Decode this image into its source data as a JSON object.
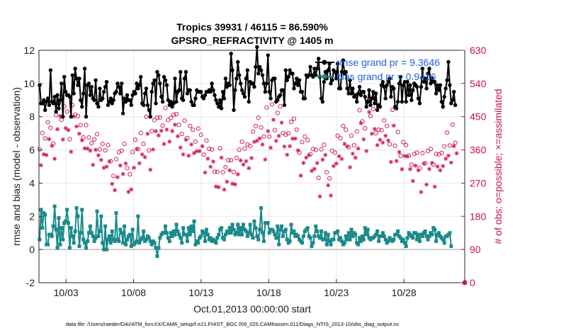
{
  "chart_data": {
    "type": "line",
    "title": "Tropics 39931 / 46115 = 86.590%",
    "subtitle": "GPSRO_REFRACTIVITY @ 1405 m",
    "xlabel": "Oct.01,2013 00:00:00 start",
    "ylabel": "rmse and bias (model - observation)",
    "y2label": "# of obs: o=possible; ×=assimilated",
    "footer": "data file: /Users/raeder/DAI/ATM_forcXX/CAM6_setup/f.e21.FHIST_BGC.f09_025.CAM6assim.011/Diags_NTrS_2013-10/obs_diag_output.nc",
    "xlim": [
      1.0,
      32.5
    ],
    "ylim": [
      -2,
      12
    ],
    "y2lim": [
      0,
      630
    ],
    "xticks": [
      3,
      8,
      13,
      18,
      23,
      28
    ],
    "xtick_labels": [
      "10/03",
      "10/08",
      "10/13",
      "10/18",
      "10/23",
      "10/28"
    ],
    "yticks": [
      -2,
      0,
      2,
      4,
      6,
      8,
      10,
      12
    ],
    "y2ticks": [
      0,
      90,
      180,
      270,
      360,
      450,
      540,
      630
    ],
    "grid": true,
    "legend_position": "top-right",
    "series": [
      {
        "name": "rmse grand pr = 9.3646",
        "axis": "left",
        "color": "#000000",
        "marker": "filled-circle",
        "values": [
          9.9,
          8.8,
          8.8,
          9.0,
          8.4,
          8.9,
          9.1,
          8.7,
          10.8,
          8.9,
          8.8,
          9.2,
          8.3,
          9.3,
          8.5,
          9.0,
          10.0,
          8.0,
          10.4,
          9.5,
          9.3,
          9.3,
          9.2,
          8.0,
          10.5,
          9.4,
          10.9,
          10.3,
          9.9,
          10.3,
          9.0,
          8.6,
          9.4,
          10.9,
          8.0,
          9.9,
          10.0,
          9.3,
          9.8,
          9.1,
          9.0,
          10.2,
          8.8,
          8.6,
          9.7,
          9.0,
          9.1,
          9.5,
          9.8,
          10.1,
          8.7,
          8.9,
          9.1,
          8.8,
          9.0,
          9.4,
          9.5,
          10.0,
          9.8,
          9.4,
          10.0,
          8.2,
          9.1,
          8.9,
          9.3,
          9.0,
          9.0,
          8.7,
          9.3,
          9.5,
          9.4,
          10.0,
          9.7,
          9.9,
          10.4,
          8.8,
          8.7,
          9.4,
          9.7,
          8.7,
          8.4,
          8.0,
          9.5,
          10.0,
          10.2,
          8.8,
          10.7,
          10.5,
          10.0,
          9.2,
          8.9,
          10.4,
          10.2,
          9.9,
          9.0,
          8.7,
          8.9,
          8.6,
          8.8,
          10.3,
          8.9,
          9.5,
          9.6,
          10.7,
          9.1,
          9.0,
          10.3,
          10.7,
          9.4,
          9.6,
          9.6,
          8.9,
          8.7,
          8.7,
          9.1,
          9.6,
          9.5,
          9.5,
          9.5,
          9.2,
          9.1,
          9.3,
          9.5,
          9.5,
          9.6,
          9.5,
          10.0,
          9.6,
          9.3,
          9.0,
          8.8,
          8.6,
          9.0,
          8.5,
          9.5,
          9.1,
          10.3,
          9.8,
          10.0,
          9.9,
          11.8,
          10.8,
          8.4,
          9.6,
          10.3,
          11.3,
          10.5,
          10.0,
          9.6,
          9.4,
          9.2,
          10.3,
          10.8,
          8.9,
          10.1,
          10.0,
          10.0,
          9.8,
          11.0,
          12.2,
          10.6,
          11.0,
          10.8,
          10.5,
          10.0,
          9.5,
          10.0,
          11.7,
          9.5,
          9.1,
          10.2,
          10.3,
          10.3,
          8.9,
          9.0,
          9.2,
          9.3,
          9.6,
          9.6,
          8.7,
          10.8,
          10.2,
          10.4,
          10.8,
          10.6,
          10.6,
          9.7,
          10.0,
          10.3,
          9.9,
          10.2,
          9.5,
          9.5,
          9.1,
          9.1,
          10.5,
          10.4,
          10.5,
          11.0,
          10.5,
          10.4,
          10.9,
          10.5,
          10.9,
          11.5,
          10.4,
          9.1,
          8.9,
          10.1,
          10.7,
          10.3,
          10.8,
          11.2,
          10.0,
          10.2,
          10.8,
          10.7,
          10.3,
          11.2,
          9.7,
          9.7,
          10.7,
          11.4,
          10.6,
          10.7,
          9.7,
          9.4,
          10.2,
          9.4,
          9.7,
          9.2,
          9.3,
          8.9,
          9.4,
          9.8,
          9.3,
          9.5,
          9.5,
          9.2,
          8.6,
          8.9,
          9.6,
          8.7,
          9.1,
          9.5,
          8.8,
          9.4,
          8.4,
          8.7,
          8.6,
          9.9,
          10.1,
          9.8,
          9.1,
          9.9,
          10.1,
          10.3,
          9.2,
          9.8,
          9.7,
          8.6,
          8.5,
          8.9,
          10.0,
          10.4,
          8.9,
          9.9,
          10.1,
          8.9,
          10.1,
          9.3,
          9.9,
          9.0,
          9.6,
          10.0,
          9.9,
          9.8,
          9.1,
          8.8,
          9.8,
          10.9,
          10.1,
          10.3,
          9.7,
          10.6,
          10.9,
          10.0,
          10.3,
          10.1,
          10.1,
          9.4,
          9.9,
          9.6,
          9.9,
          8.9,
          8.6,
          9.2,
          9.7,
          10.2,
          11.3,
          9.9,
          8.8,
          9.0,
          9.5,
          8.7
        ]
      },
      {
        "name": "bias grand pr = 0.9416",
        "axis": "left",
        "color": "#1a8a8a",
        "marker": "filled-square",
        "values": [
          0.6,
          2.4,
          1.3,
          2.2,
          2.1,
          0.3,
          0.3,
          0.9,
          0.9,
          0.8,
          1.4,
          2.6,
          1.2,
          0.1,
          1.9,
          0.3,
          1.3,
          0.6,
          1.6,
          1.7,
          2.4,
          1.6,
          0.1,
          1.3,
          0.8,
          0.4,
          1.1,
          2.5,
          2.0,
          0.2,
          1.0,
          2.4,
          0.6,
          0.4,
          0.1,
          0.5,
          1.0,
          1.4,
          1.0,
          0.8,
          0.5,
          0.7,
          2.3,
          0.8,
          1.1,
          2.0,
          0.4,
          0.0,
          1.4,
          0.0,
          0.6,
          0.8,
          0.4,
          1.1,
          0.6,
          0.5,
          2.2,
          0.6,
          0.5,
          1.2,
          1.0,
          0.4,
          1.4,
          0.3,
          0.6,
          0.8,
          0.9,
          0.2,
          1.2,
          0.3,
          0.4,
          0.5,
          2.0,
          0.4,
          0.6,
          0.7,
          1.1,
          0.5,
          0.6,
          0.8,
          0.7,
          0.5,
          0.3,
          0.5,
          0.4,
          0.1,
          -0.4,
          0.1,
          0.7,
          0.9,
          1.0,
          1.0,
          1.4,
          1.0,
          0.7,
          0.5,
          1.0,
          0.8,
          1.1,
          0.9,
          1.5,
          1.1,
          0.9,
          0.7,
          0.4,
          1.3,
          0.9,
          0.9,
          0.5,
          1.3,
          0.9,
          1.4,
          1.1,
          1.7,
          0.3,
          0.5,
          0.4,
          0.7,
          0.8,
          1.1,
          1.0,
          0.5,
          1.2,
          0.9,
          0.6,
          0.7,
          0.5,
          0.6,
          0.5,
          0.4,
          0.7,
          0.9,
          1.2,
          1.3,
          0.7,
          0.6,
          0.9,
          1.1,
          1.0,
          1.3,
          1.0,
          1.5,
          1.2,
          0.9,
          1.0,
          1.5,
          0.9,
          1.3,
          0.9,
          1.5,
          1.2,
          1.1,
          0.8,
          1.0,
          1.5,
          0.9,
          0.7,
          1.7,
          1.3,
          0.8,
          0.6,
          1.2,
          2.5,
          1.0,
          0.5,
          1.6,
          1.6,
          1.6,
          1.0,
          1.2,
          1.2,
          1.1,
          0.9,
          0.7,
          1.4,
          0.3,
          1.2,
          1.4,
          0.8,
          1.1,
          1.2,
          0.6,
          0.4,
          0.5,
          1.5,
          1.0,
          1.1,
          0.8,
          0.9,
          0.8,
          0.6,
          0.5,
          0.4,
          0.8,
          1.1,
          1.2,
          1.3,
          0.8,
          0.7,
          0.2,
          0.4,
          0.8,
          1.4,
          1.1,
          0.8,
          0.7,
          1.1,
          0.6,
          0.6,
          1.0,
          0.3,
          0.9,
          0.5,
          0.3,
          0.6,
          0.6,
          1.0,
          1.0,
          1.1,
          0.6,
          0.7,
          0.5,
          0.3,
          0.4,
          0.8,
          0.6,
          1.0,
          0.6,
          1.2,
          0.8,
          1.0,
          0.9,
          0.4,
          0.3,
          0.7,
          0.5,
          0.8,
          0.6,
          1.3,
          0.9,
          1.2,
          0.7,
          0.6,
          0.7,
          0.7,
          0.8,
          0.9,
          1.1,
          0.5,
          0.8,
          0.8,
          1.0,
          0.8,
          0.6,
          0.4,
          0.5,
          0.7,
          0.6,
          0.5,
          0.6,
          0.9,
          0.9,
          1.1,
          0.8,
          0.7,
          0.5,
          0.6,
          0.4,
          0.2,
          0.7,
          1.0,
          0.9,
          0.8,
          0.7,
          1.0,
          1.0,
          0.6,
          0.9,
          0.5,
          0.9,
          0.8,
          1.0,
          1.1,
          0.8,
          0.6,
          0.8,
          1.0,
          0.9,
          1.3,
          1.2,
          0.5,
          0.9,
          1.0,
          0.8,
          0.7,
          0.6,
          0.4,
          0.8,
          0.8,
          0.9,
          1.0,
          0.2
        ]
      }
    ]
  }
}
